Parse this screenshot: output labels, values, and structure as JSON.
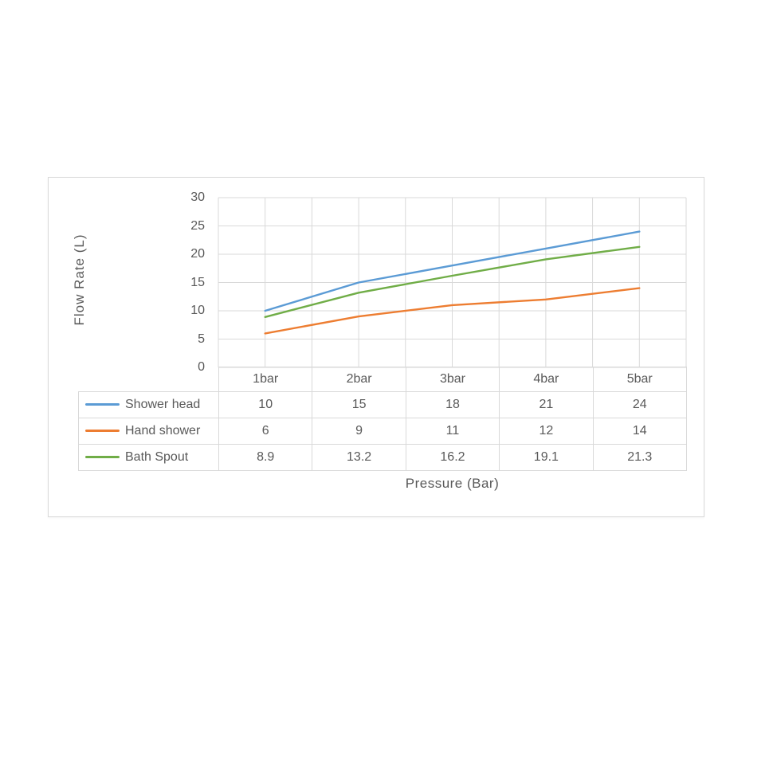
{
  "chart_data": {
    "type": "line",
    "title": "",
    "xlabel": "Pressure (Bar)",
    "ylabel": "Flow Rate (L)",
    "categories": [
      "1bar",
      "2bar",
      "3bar",
      "4bar",
      "5bar"
    ],
    "series": [
      {
        "name": "Shower head",
        "color": "#5B9BD5",
        "values": [
          10,
          15,
          18,
          21,
          24
        ]
      },
      {
        "name": "Hand shower",
        "color": "#ED7D31",
        "values": [
          6,
          9,
          11,
          12,
          14
        ]
      },
      {
        "name": "Bath Spout",
        "color": "#70AD47",
        "values": [
          8.9,
          13.2,
          16.2,
          19.1,
          21.3
        ]
      }
    ],
    "y_axis": {
      "min": 0,
      "max": 30,
      "step": 5,
      "tick_labels": [
        "30",
        "25",
        "20",
        "15",
        "10",
        "5",
        "0"
      ]
    },
    "x_axis_style": "categories-between-ticks",
    "grid": {
      "horizontal": true,
      "vertical": true,
      "vertical_minor": true
    },
    "legend_position": "data-table-left",
    "has_data_table": true
  },
  "style": {
    "text_color": "#595959",
    "grid_color": "#D9D9D9",
    "table_border_color": "#D9D9D9",
    "box_border_color": "#D9D9D9",
    "background": "#FFFFFF"
  }
}
